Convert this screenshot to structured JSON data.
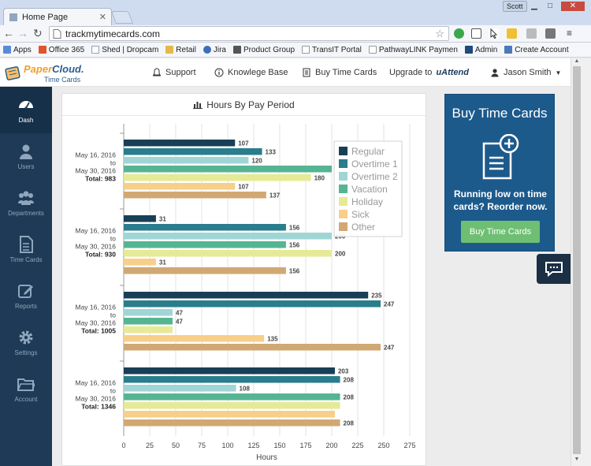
{
  "browser": {
    "tab_title": "Home Page",
    "tab_close": "✕",
    "user": "Scott",
    "url": "trackmytimecards.com",
    "bookmarks": [
      {
        "label": "Apps",
        "color": "#5a8ad6"
      },
      {
        "label": "Office 365",
        "color": "#e0542a"
      },
      {
        "label": "Shed | Dropcam",
        "color": "#8aa0b8"
      },
      {
        "label": "Retail",
        "color": "#e6b84a"
      },
      {
        "label": "Jira",
        "color": "#3d6fb6"
      },
      {
        "label": "Product Group",
        "color": "#555555"
      },
      {
        "label": "TransIT Portal",
        "color": "#cccccc"
      },
      {
        "label": "PathwayLINK Paymen",
        "color": "#cccccc"
      },
      {
        "label": "Admin",
        "color": "#1f4a7a"
      },
      {
        "label": "Create Account",
        "color": "#4a7ab8"
      }
    ]
  },
  "header": {
    "logo_paper": "Paper",
    "logo_cloud": "Cloud.",
    "logo_sub": "Time Cards",
    "nav": {
      "support": "Support",
      "knowledge": "Knowlege Base",
      "buy": "Buy Time Cards",
      "upgrade": "Upgrade to",
      "upgrade_brand": "uAttend",
      "user": "Jason Smith"
    }
  },
  "sidebar": {
    "items": [
      {
        "label": "Dash",
        "icon": "gauge-icon"
      },
      {
        "label": "Users",
        "icon": "user-icon"
      },
      {
        "label": "Departments",
        "icon": "group-icon"
      },
      {
        "label": "Time Cards",
        "icon": "document-icon"
      },
      {
        "label": "Reports",
        "icon": "edit-icon"
      },
      {
        "label": "Settings",
        "icon": "gear-icon"
      },
      {
        "label": "Account",
        "icon": "folder-icon"
      }
    ]
  },
  "chart_panel": {
    "title": "Hours By Pay Period"
  },
  "promo": {
    "title": "Buy Time Cards",
    "text": "Running low on time cards? Reorder now.",
    "button": "Buy Time Cards"
  },
  "chart_data": {
    "type": "bar",
    "orientation": "horizontal",
    "title": "Hours By Pay Period",
    "xlabel": "Hours",
    "xlim": [
      0,
      275
    ],
    "xticks": [
      0,
      25,
      50,
      75,
      100,
      125,
      150,
      175,
      200,
      225,
      250,
      275
    ],
    "grid": true,
    "legend_position": "top-right",
    "groups": [
      {
        "date_start": "May 16, 2016",
        "to": "to",
        "date_end": "May 30, 2016",
        "total": "Total: 983",
        "values": [
          107,
          133,
          120,
          200,
          180,
          107,
          137
        ]
      },
      {
        "date_start": "May 16, 2016",
        "to": "to",
        "date_end": "May 30, 2016",
        "total": "Total: 930",
        "values": [
          31,
          156,
          200,
          156,
          200,
          31,
          156
        ]
      },
      {
        "date_start": "May 16, 2016",
        "to": "to",
        "date_end": "May 30, 2016",
        "total": "Total: 1005",
        "values": [
          235,
          247,
          47,
          47,
          47,
          135,
          247
        ]
      },
      {
        "date_start": "May 16, 2016",
        "to": "to",
        "date_end": "May 30, 2016",
        "total": "Total: 1346",
        "values": [
          203,
          208,
          108,
          208,
          208,
          203,
          208
        ]
      }
    ],
    "hidden_labels": [
      [
        false,
        false,
        false,
        true,
        false,
        false,
        false
      ],
      [
        false,
        false,
        false,
        false,
        false,
        false,
        false
      ],
      [
        false,
        false,
        false,
        false,
        true,
        false,
        false
      ],
      [
        false,
        false,
        false,
        false,
        true,
        true,
        false
      ]
    ],
    "series": [
      {
        "name": "Regular",
        "color": "#183f56"
      },
      {
        "name": "Overtime 1",
        "color": "#2a7d8c"
      },
      {
        "name": "Overtime 2",
        "color": "#9fd6d5"
      },
      {
        "name": "Vacation",
        "color": "#55b592"
      },
      {
        "name": "Holiday",
        "color": "#e6ea96"
      },
      {
        "name": "Sick",
        "color": "#f7cf8a"
      },
      {
        "name": "Other",
        "color": "#d1a874"
      }
    ]
  }
}
